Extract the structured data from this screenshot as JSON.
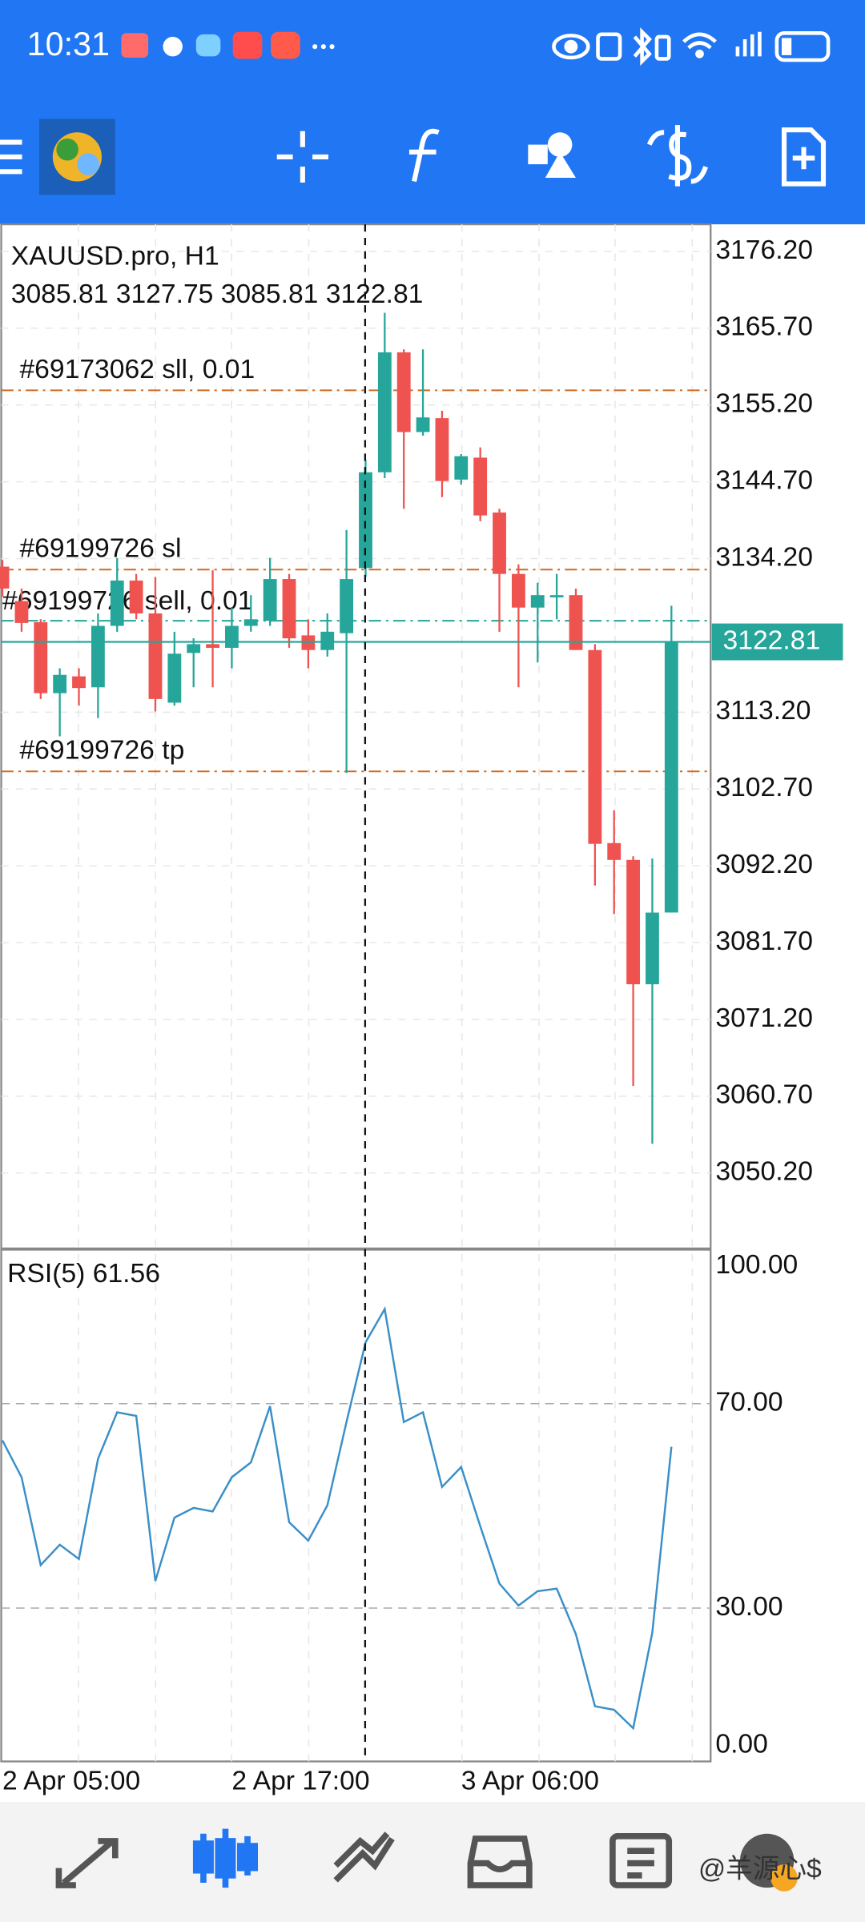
{
  "status_bar": {
    "time": "10:31"
  },
  "watermark": "@羊源心$",
  "chart_data": [
    {
      "type": "candlestick",
      "title": "XAUUSD.pro, H1",
      "categories": [
        "2 Apr 05:00",
        null,
        null,
        null,
        null,
        null,
        null,
        null,
        null,
        null,
        null,
        null,
        "2 Apr 17:00",
        null,
        null,
        null,
        null,
        null,
        null,
        null,
        null,
        null,
        null,
        null,
        "3 Apr 06:00",
        null,
        null,
        null,
        null,
        null,
        null,
        null,
        null,
        null,
        null,
        null
      ],
      "open": [
        3133.1,
        3128.4,
        3125.5,
        3115.8,
        3118.1,
        3116.6,
        3125.0,
        3131.2,
        3126.7,
        3114.5,
        3121.3,
        3122.5,
        3122.0,
        3125.0,
        3125.7,
        3131.4,
        3123.7,
        3121.7,
        3124.0,
        3132.9,
        3146.0,
        3162.4,
        3151.5,
        3153.4,
        3145.0,
        3148.0,
        3140.5,
        3132.1,
        3127.5,
        3128.9,
        3129.2,
        3121.7,
        3095.3,
        3093.0,
        3076.0,
        3085.81
      ],
      "high": [
        3134.0,
        3130.1,
        3125.9,
        3119.2,
        3119.2,
        3126.7,
        3134.3,
        3132.1,
        3131.7,
        3124.2,
        3123.3,
        3132.6,
        3127.5,
        3129.2,
        3134.3,
        3132.1,
        3125.9,
        3126.7,
        3138.1,
        3147.7,
        3167.8,
        3162.8,
        3162.8,
        3154.4,
        3148.5,
        3149.4,
        3141.0,
        3133.4,
        3130.9,
        3132.1,
        3130.1,
        3122.5,
        3099.8,
        3093.5,
        3093.2,
        3127.75
      ],
      "low": [
        3129.0,
        3124.2,
        3115.0,
        3109.9,
        3114.1,
        3112.4,
        3124.2,
        3125.9,
        3113.3,
        3114.1,
        3116.6,
        3116.6,
        3119.2,
        3124.2,
        3125.0,
        3122.0,
        3119.2,
        3120.8,
        3104.9,
        3131.7,
        3145.2,
        3141.0,
        3151.0,
        3142.6,
        3144.3,
        3139.3,
        3124.2,
        3116.6,
        3120.0,
        3125.9,
        3121.7,
        3089.5,
        3085.6,
        3062.1,
        3054.2,
        3085.81
      ],
      "close": [
        3130.1,
        3125.4,
        3115.8,
        3118.3,
        3116.5,
        3125.0,
        3131.2,
        3126.7,
        3115.0,
        3121.2,
        3122.5,
        3122.0,
        3125.0,
        3125.9,
        3131.4,
        3123.3,
        3121.7,
        3124.2,
        3131.4,
        3146.0,
        3162.4,
        3151.5,
        3153.5,
        3144.8,
        3148.2,
        3140.1,
        3132.1,
        3127.5,
        3129.2,
        3129.2,
        3121.7,
        3095.2,
        3093.0,
        3076.0,
        3085.8,
        3122.81
      ],
      "up_color": "#26a69a",
      "down_color": "#ef5350",
      "ylim": [
        3039.8,
        3179.9
      ],
      "yticks": [
        {
          "value": 3176.2,
          "label": "3176.20"
        },
        {
          "value": 3165.7,
          "label": "3165.70"
        },
        {
          "value": 3155.2,
          "label": "3155.20"
        },
        {
          "value": 3144.7,
          "label": "3144.70"
        },
        {
          "value": 3134.2,
          "label": "3134.20"
        },
        {
          "value": 3113.2,
          "label": "3113.20"
        },
        {
          "value": 3102.7,
          "label": "3102.70"
        },
        {
          "value": 3092.2,
          "label": "3092.20"
        },
        {
          "value": 3081.7,
          "label": "3081.70"
        },
        {
          "value": 3071.2,
          "label": "3071.20"
        },
        {
          "value": 3060.7,
          "label": "3060.70"
        },
        {
          "value": 3050.2,
          "label": "3050.20"
        }
      ],
      "orders": [
        {
          "label": "#69173062 sll, 0.01",
          "value": 3157.2,
          "color": "#d2691e"
        },
        {
          "label": "#69199726 sl",
          "value": 3132.7,
          "color": "#d2691e"
        },
        {
          "label": "#69199726 sell, 0.01",
          "value": 3125.7,
          "color": "#26a69a"
        },
        {
          "label": "#69199726 tp",
          "value": 3105.1,
          "color": "#d2691e"
        }
      ],
      "grid": true
    },
    {
      "type": "line",
      "title": "RSI(5)",
      "color": "#3a8fc8",
      "values": [
        62.8,
        55.6,
        38.4,
        42.4,
        39.6,
        59.2,
        68.3,
        67.6,
        35.3,
        47.7,
        49.6,
        48.9,
        55.6,
        58.5,
        69.5,
        46.8,
        43.2,
        50.1,
        66.4,
        82.0,
        88.5,
        66.4,
        68.3,
        53.7,
        57.6,
        46.0,
        34.8,
        30.5,
        33.3,
        33.8,
        24.9,
        10.8,
        10.1,
        6.5,
        25.2,
        61.56
      ],
      "ylim": [
        0,
        100
      ],
      "yticks": [
        {
          "value": 100,
          "label": "100.00"
        },
        {
          "value": 70,
          "label": "70.00"
        },
        {
          "value": 30,
          "label": "30.00"
        },
        {
          "value": 0,
          "label": "0.00"
        }
      ]
    }
  ]
}
